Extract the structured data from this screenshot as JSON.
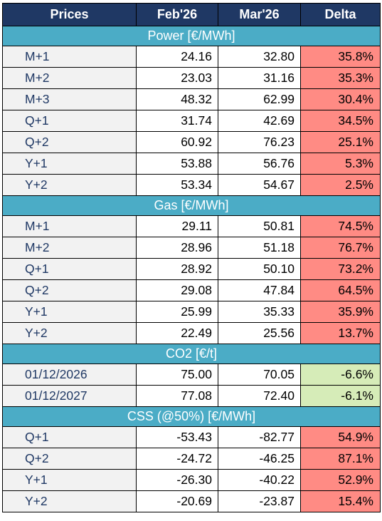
{
  "header": {
    "col_label": "Prices",
    "col_feb": "Feb'26",
    "col_mar": "Mar'26",
    "col_delta": "Delta"
  },
  "colors": {
    "header_bg": "#1f3864",
    "section_bg": "#4bacc6",
    "delta_up_bg": "#ff8b84",
    "delta_down_bg": "#d6ecb8",
    "label_bg": "#f2f2f2"
  },
  "sections": [
    {
      "title": "Power [€/MWh]",
      "rows": [
        {
          "label": "M+1",
          "feb": "24.16",
          "mar": "32.80",
          "delta": "35.8%",
          "trend": "up"
        },
        {
          "label": "M+2",
          "feb": "23.03",
          "mar": "31.16",
          "delta": "35.3%",
          "trend": "up"
        },
        {
          "label": "M+3",
          "feb": "48.32",
          "mar": "62.99",
          "delta": "30.4%",
          "trend": "up"
        },
        {
          "label": "Q+1",
          "feb": "31.74",
          "mar": "42.69",
          "delta": "34.5%",
          "trend": "up"
        },
        {
          "label": "Q+2",
          "feb": "60.92",
          "mar": "76.23",
          "delta": "25.1%",
          "trend": "up"
        },
        {
          "label": "Y+1",
          "feb": "53.88",
          "mar": "56.76",
          "delta": "5.3%",
          "trend": "up"
        },
        {
          "label": "Y+2",
          "feb": "53.34",
          "mar": "54.67",
          "delta": "2.5%",
          "trend": "up"
        }
      ]
    },
    {
      "title": "Gas [€/MWh]",
      "rows": [
        {
          "label": "M+1",
          "feb": "29.11",
          "mar": "50.81",
          "delta": "74.5%",
          "trend": "up"
        },
        {
          "label": "M+2",
          "feb": "28.96",
          "mar": "51.18",
          "delta": "76.7%",
          "trend": "up"
        },
        {
          "label": "Q+1",
          "feb": "28.92",
          "mar": "50.10",
          "delta": "73.2%",
          "trend": "up"
        },
        {
          "label": "Q+2",
          "feb": "29.08",
          "mar": "47.84",
          "delta": "64.5%",
          "trend": "up"
        },
        {
          "label": "Y+1",
          "feb": "25.99",
          "mar": "35.33",
          "delta": "35.9%",
          "trend": "up"
        },
        {
          "label": "Y+2",
          "feb": "22.49",
          "mar": "25.56",
          "delta": "13.7%",
          "trend": "up"
        }
      ]
    },
    {
      "title": "CO2 [€/t]",
      "rows": [
        {
          "label": "01/12/2026",
          "feb": "75.00",
          "mar": "70.05",
          "delta": "-6.6%",
          "trend": "down"
        },
        {
          "label": "01/12/2027",
          "feb": "77.08",
          "mar": "72.40",
          "delta": "-6.1%",
          "trend": "down"
        }
      ]
    },
    {
      "title": "CSS (@50%) [€/MWh]",
      "rows": [
        {
          "label": "Q+1",
          "feb": "-53.43",
          "mar": "-82.77",
          "delta": "54.9%",
          "trend": "up"
        },
        {
          "label": "Q+2",
          "feb": "-24.72",
          "mar": "-46.25",
          "delta": "87.1%",
          "trend": "up"
        },
        {
          "label": "Y+1",
          "feb": "-26.30",
          "mar": "-40.22",
          "delta": "52.9%",
          "trend": "up"
        },
        {
          "label": "Y+2",
          "feb": "-20.69",
          "mar": "-23.87",
          "delta": "15.4%",
          "trend": "up"
        }
      ]
    }
  ]
}
